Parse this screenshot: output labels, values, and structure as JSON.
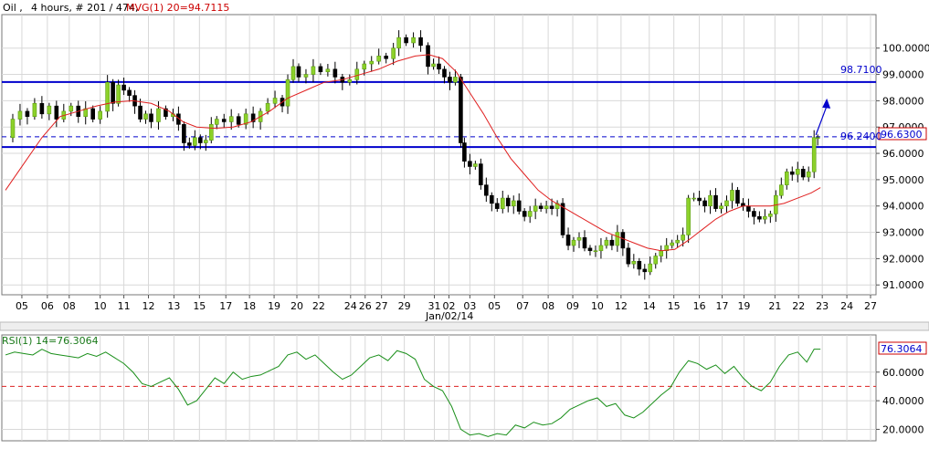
{
  "header": {
    "instrument": "Oil ,",
    "info": "4 hours, # 201 / 474,",
    "ma_label": "MVG(1) 20=94.7115"
  },
  "rsi_panel": {
    "label": "RSI(1) 14=76.3064"
  },
  "colors": {
    "background": "#ffffff",
    "grid": "#d8d8d8",
    "up_candle": "#8cd12a",
    "down_candle": "#000000",
    "ma_line": "#e02020",
    "level_line": "#0000cc",
    "rsi_line": "#1a8f1a",
    "rsi_midline": "#dd2222",
    "tag_border": "#cc0000",
    "tag_text": "#0000cc"
  },
  "chart_data": [
    {
      "type": "candlestick",
      "ylim": [
        90.8,
        101.1
      ],
      "y_ticks": [
        "91.0000",
        "92.0000",
        "93.0000",
        "94.0000",
        "95.0000",
        "96.0000",
        "97.0000",
        "98.0000",
        "99.0000",
        "100.0000"
      ],
      "x_ticks": [
        "05",
        "06",
        "08",
        "10",
        "11",
        "12",
        "13",
        "15",
        "17",
        "18",
        "19",
        "20",
        "22",
        "24",
        "26",
        "27",
        "29",
        "31",
        "02",
        "03",
        "05",
        "07",
        "08",
        "09",
        "10",
        "12",
        "14",
        "15",
        "16",
        "17",
        "19",
        "21",
        "22",
        "23",
        "24",
        "27"
      ],
      "x_axis_label": "Jan/02/14",
      "horizontal_levels": [
        {
          "value": 98.71,
          "label": "98.7100",
          "style": "solid"
        },
        {
          "value": 96.24,
          "label": "96.2400",
          "style": "solid"
        },
        {
          "value": 96.63,
          "label": "96.6300",
          "style": "dashed"
        }
      ],
      "current_price": "96.6300",
      "arrow_annotation": {
        "from_value": 96.7,
        "to_value": 97.6
      },
      "close_path": [
        [
          0,
          96.6
        ],
        [
          8,
          97.3
        ],
        [
          16,
          97.6
        ],
        [
          24,
          97.4
        ],
        [
          32,
          97.9
        ],
        [
          40,
          97.5
        ],
        [
          48,
          97.8
        ],
        [
          56,
          97.3
        ],
        [
          64,
          97.6
        ],
        [
          72,
          97.8
        ],
        [
          80,
          97.4
        ],
        [
          88,
          97.7
        ],
        [
          96,
          97.3
        ],
        [
          104,
          97.6
        ],
        [
          112,
          98.7
        ],
        [
          118,
          97.9
        ],
        [
          124,
          98.6
        ],
        [
          130,
          98.4
        ],
        [
          136,
          98.2
        ],
        [
          142,
          97.8
        ],
        [
          148,
          97.3
        ],
        [
          154,
          97.5
        ],
        [
          160,
          97.2
        ],
        [
          168,
          97.7
        ],
        [
          176,
          97.4
        ],
        [
          184,
          97.5
        ],
        [
          190,
          97.1
        ],
        [
          196,
          96.4
        ],
        [
          202,
          96.3
        ],
        [
          208,
          96.6
        ],
        [
          214,
          96.4
        ],
        [
          220,
          96.5
        ],
        [
          226,
          97.1
        ],
        [
          232,
          97.3
        ],
        [
          240,
          97.2
        ],
        [
          248,
          97.4
        ],
        [
          256,
          97.1
        ],
        [
          264,
          97.5
        ],
        [
          272,
          97.2
        ],
        [
          280,
          97.6
        ],
        [
          288,
          97.9
        ],
        [
          296,
          98.1
        ],
        [
          304,
          97.8
        ],
        [
          310,
          98.8
        ],
        [
          316,
          99.3
        ],
        [
          322,
          98.9
        ],
        [
          330,
          99.0
        ],
        [
          338,
          99.3
        ],
        [
          346,
          99.1
        ],
        [
          354,
          99.2
        ],
        [
          362,
          98.9
        ],
        [
          370,
          98.7
        ],
        [
          378,
          98.8
        ],
        [
          386,
          99.2
        ],
        [
          394,
          99.4
        ],
        [
          402,
          99.5
        ],
        [
          410,
          99.7
        ],
        [
          418,
          99.6
        ],
        [
          426,
          100.0
        ],
        [
          432,
          100.4
        ],
        [
          440,
          100.2
        ],
        [
          448,
          100.4
        ],
        [
          456,
          100.1
        ],
        [
          464,
          99.3
        ],
        [
          470,
          99.4
        ],
        [
          476,
          99.2
        ],
        [
          482,
          98.9
        ],
        [
          488,
          98.7
        ],
        [
          494,
          98.9
        ],
        [
          500,
          96.4
        ],
        [
          504,
          95.7
        ],
        [
          510,
          95.5
        ],
        [
          516,
          95.6
        ],
        [
          522,
          94.8
        ],
        [
          528,
          94.4
        ],
        [
          534,
          94.1
        ],
        [
          540,
          93.9
        ],
        [
          546,
          94.3
        ],
        [
          552,
          94.0
        ],
        [
          558,
          94.2
        ],
        [
          564,
          93.8
        ],
        [
          570,
          93.6
        ],
        [
          576,
          93.8
        ],
        [
          582,
          94.0
        ],
        [
          588,
          93.9
        ],
        [
          594,
          94.0
        ],
        [
          600,
          93.9
        ],
        [
          606,
          94.1
        ],
        [
          612,
          92.9
        ],
        [
          618,
          92.5
        ],
        [
          624,
          92.7
        ],
        [
          630,
          92.8
        ],
        [
          636,
          92.4
        ],
        [
          642,
          92.3
        ],
        [
          648,
          92.3
        ],
        [
          654,
          92.5
        ],
        [
          660,
          92.7
        ],
        [
          666,
          92.5
        ],
        [
          672,
          93.0
        ],
        [
          678,
          92.4
        ],
        [
          684,
          91.8
        ],
        [
          690,
          91.9
        ],
        [
          696,
          91.6
        ],
        [
          702,
          91.5
        ],
        [
          708,
          91.8
        ],
        [
          714,
          92.1
        ],
        [
          720,
          92.3
        ],
        [
          726,
          92.5
        ],
        [
          732,
          92.6
        ],
        [
          738,
          92.7
        ],
        [
          744,
          92.9
        ],
        [
          750,
          94.3
        ],
        [
          756,
          94.3
        ],
        [
          762,
          94.2
        ],
        [
          768,
          94.0
        ],
        [
          774,
          94.4
        ],
        [
          780,
          93.9
        ],
        [
          786,
          94.0
        ],
        [
          792,
          94.2
        ],
        [
          798,
          94.6
        ],
        [
          804,
          94.1
        ],
        [
          810,
          94.0
        ],
        [
          816,
          93.8
        ],
        [
          822,
          93.6
        ],
        [
          828,
          93.5
        ],
        [
          834,
          93.6
        ],
        [
          840,
          93.7
        ],
        [
          846,
          94.4
        ],
        [
          852,
          94.8
        ],
        [
          858,
          95.3
        ],
        [
          864,
          95.2
        ],
        [
          870,
          95.4
        ],
        [
          876,
          95.1
        ],
        [
          882,
          95.3
        ],
        [
          888,
          96.6
        ],
        [
          892,
          96.6
        ]
      ],
      "moving_average": {
        "name": "MVG(1) 20",
        "points": [
          [
            0,
            94.6
          ],
          [
            20,
            95.6
          ],
          [
            40,
            96.6
          ],
          [
            60,
            97.4
          ],
          [
            80,
            97.6
          ],
          [
            100,
            97.8
          ],
          [
            120,
            97.95
          ],
          [
            140,
            98.0
          ],
          [
            160,
            97.9
          ],
          [
            180,
            97.6
          ],
          [
            195,
            97.2
          ],
          [
            210,
            97.0
          ],
          [
            230,
            96.95
          ],
          [
            250,
            97.0
          ],
          [
            270,
            97.2
          ],
          [
            290,
            97.6
          ],
          [
            310,
            98.1
          ],
          [
            330,
            98.4
          ],
          [
            350,
            98.7
          ],
          [
            370,
            98.8
          ],
          [
            390,
            99.0
          ],
          [
            410,
            99.2
          ],
          [
            430,
            99.5
          ],
          [
            450,
            99.7
          ],
          [
            465,
            99.75
          ],
          [
            480,
            99.6
          ],
          [
            495,
            99.1
          ],
          [
            510,
            98.3
          ],
          [
            525,
            97.5
          ],
          [
            540,
            96.6
          ],
          [
            555,
            95.8
          ],
          [
            570,
            95.2
          ],
          [
            585,
            94.6
          ],
          [
            600,
            94.2
          ],
          [
            615,
            93.9
          ],
          [
            630,
            93.6
          ],
          [
            645,
            93.3
          ],
          [
            660,
            93.0
          ],
          [
            675,
            92.8
          ],
          [
            690,
            92.6
          ],
          [
            705,
            92.4
          ],
          [
            720,
            92.3
          ],
          [
            735,
            92.35
          ],
          [
            750,
            92.7
          ],
          [
            765,
            93.1
          ],
          [
            780,
            93.5
          ],
          [
            795,
            93.8
          ],
          [
            810,
            94.0
          ],
          [
            825,
            94.0
          ],
          [
            840,
            94.0
          ],
          [
            855,
            94.1
          ],
          [
            870,
            94.3
          ],
          [
            885,
            94.5
          ],
          [
            895,
            94.7
          ]
        ]
      }
    },
    {
      "type": "line",
      "series_name": "RSI(1) 14",
      "ylim": [
        12,
        86
      ],
      "y_ticks": [
        "20.0000",
        "40.0000",
        "60.0000"
      ],
      "midline": 50,
      "current_value": "76.3064",
      "points": [
        [
          0,
          72
        ],
        [
          10,
          74
        ],
        [
          20,
          73
        ],
        [
          30,
          72
        ],
        [
          40,
          76
        ],
        [
          50,
          73
        ],
        [
          60,
          72
        ],
        [
          70,
          71
        ],
        [
          80,
          70
        ],
        [
          90,
          73
        ],
        [
          100,
          71
        ],
        [
          110,
          74
        ],
        [
          120,
          70
        ],
        [
          130,
          66
        ],
        [
          140,
          60
        ],
        [
          150,
          52
        ],
        [
          160,
          50
        ],
        [
          170,
          53
        ],
        [
          180,
          56
        ],
        [
          190,
          48
        ],
        [
          200,
          37
        ],
        [
          210,
          40
        ],
        [
          220,
          48
        ],
        [
          230,
          56
        ],
        [
          240,
          52
        ],
        [
          250,
          60
        ],
        [
          260,
          55
        ],
        [
          270,
          57
        ],
        [
          280,
          58
        ],
        [
          290,
          61
        ],
        [
          300,
          64
        ],
        [
          310,
          72
        ],
        [
          320,
          74
        ],
        [
          330,
          69
        ],
        [
          340,
          72
        ],
        [
          350,
          66
        ],
        [
          360,
          60
        ],
        [
          370,
          55
        ],
        [
          380,
          58
        ],
        [
          390,
          64
        ],
        [
          400,
          70
        ],
        [
          410,
          72
        ],
        [
          420,
          68
        ],
        [
          430,
          75
        ],
        [
          440,
          73
        ],
        [
          450,
          69
        ],
        [
          460,
          55
        ],
        [
          470,
          50
        ],
        [
          480,
          47
        ],
        [
          490,
          36
        ],
        [
          500,
          20
        ],
        [
          510,
          16
        ],
        [
          520,
          17
        ],
        [
          530,
          15
        ],
        [
          540,
          17
        ],
        [
          550,
          16
        ],
        [
          560,
          23
        ],
        [
          570,
          21
        ],
        [
          580,
          25
        ],
        [
          590,
          23
        ],
        [
          600,
          24
        ],
        [
          610,
          28
        ],
        [
          620,
          34
        ],
        [
          630,
          37
        ],
        [
          640,
          40
        ],
        [
          650,
          42
        ],
        [
          660,
          36
        ],
        [
          670,
          38
        ],
        [
          680,
          30
        ],
        [
          690,
          28
        ],
        [
          700,
          32
        ],
        [
          710,
          38
        ],
        [
          720,
          44
        ],
        [
          730,
          49
        ],
        [
          740,
          60
        ],
        [
          750,
          68
        ],
        [
          760,
          66
        ],
        [
          770,
          62
        ],
        [
          780,
          65
        ],
        [
          790,
          59
        ],
        [
          800,
          64
        ],
        [
          810,
          56
        ],
        [
          820,
          50
        ],
        [
          830,
          47
        ],
        [
          840,
          53
        ],
        [
          850,
          64
        ],
        [
          860,
          72
        ],
        [
          870,
          74
        ],
        [
          880,
          67
        ],
        [
          888,
          76
        ],
        [
          895,
          76
        ]
      ]
    }
  ]
}
